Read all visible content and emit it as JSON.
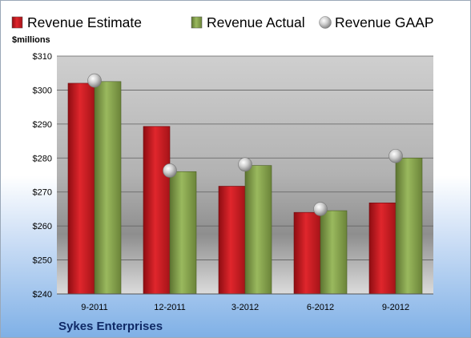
{
  "chart_data": {
    "type": "bar",
    "categories": [
      "9-2011",
      "12-2011",
      "3-2012",
      "6-2012",
      "9-2012"
    ],
    "series": [
      {
        "name": "Revenue Estimate",
        "values": [
          302,
          289.3,
          271.7,
          264,
          266.8
        ],
        "color": "#d42026",
        "kind": "bar"
      },
      {
        "name": "Revenue Actual",
        "values": [
          302.5,
          276,
          277.8,
          264.5,
          280
        ],
        "color": "#8fa854",
        "kind": "bar"
      },
      {
        "name": "Revenue GAAP",
        "values": [
          302.8,
          276.3,
          278.1,
          265,
          280.6
        ],
        "color": "#b8b8b8",
        "kind": "marker"
      }
    ],
    "ylabel": "$millions",
    "ylim": [
      240,
      310
    ],
    "yticks": [
      240,
      250,
      260,
      270,
      280,
      290,
      300,
      310
    ],
    "ytick_labels": [
      "$240",
      "$250",
      "$260",
      "$270",
      "$280",
      "$290",
      "$300",
      "$310"
    ],
    "grid": true,
    "legend_position": "top",
    "company": "Sykes Enterprises"
  }
}
